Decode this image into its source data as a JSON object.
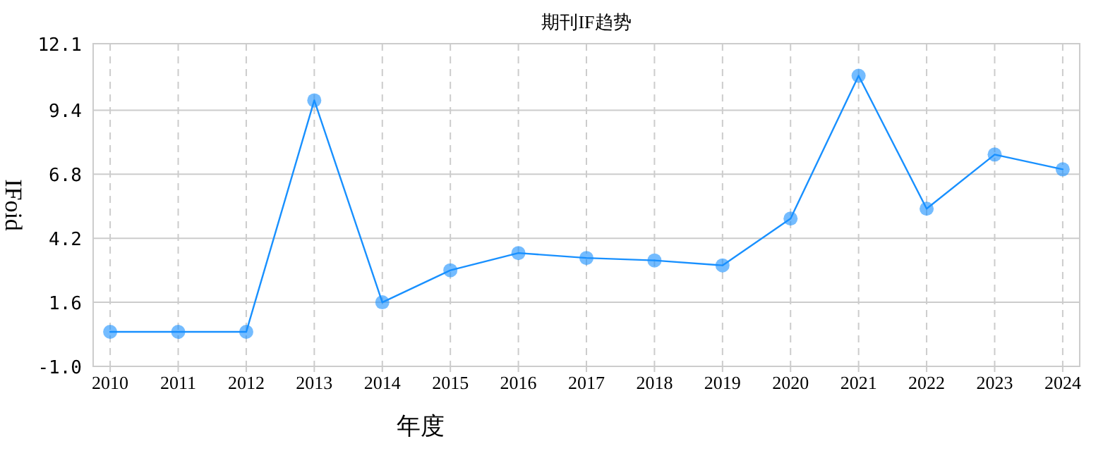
{
  "chart_data": {
    "type": "line",
    "title": "期刊IF趋势",
    "xlabel": "年度",
    "ylabel": "IFoid",
    "categories": [
      "2010",
      "2011",
      "2012",
      "2013",
      "2014",
      "2015",
      "2016",
      "2017",
      "2018",
      "2019",
      "2020",
      "2021",
      "2022",
      "2023",
      "2024"
    ],
    "series": [
      {
        "color": "#1890ff",
        "values": [
          0.4,
          0.4,
          0.4,
          9.8,
          1.6,
          2.9,
          3.6,
          3.4,
          3.3,
          3.1,
          5.0,
          10.8,
          5.4,
          7.6,
          7.0
        ]
      }
    ],
    "ylim": [
      -1.0,
      12.1
    ],
    "yticks": [
      {
        "value": -1.0,
        "label": "-1.0"
      },
      {
        "value": 1.6,
        "label": "1.6"
      },
      {
        "value": 4.2,
        "label": "4.2"
      },
      {
        "value": 6.8,
        "label": "6.8"
      },
      {
        "value": 9.4,
        "label": "9.4"
      },
      {
        "value": 12.1,
        "label": "12.1"
      }
    ],
    "grid": true,
    "marker": "circle",
    "line_style": "solid"
  }
}
